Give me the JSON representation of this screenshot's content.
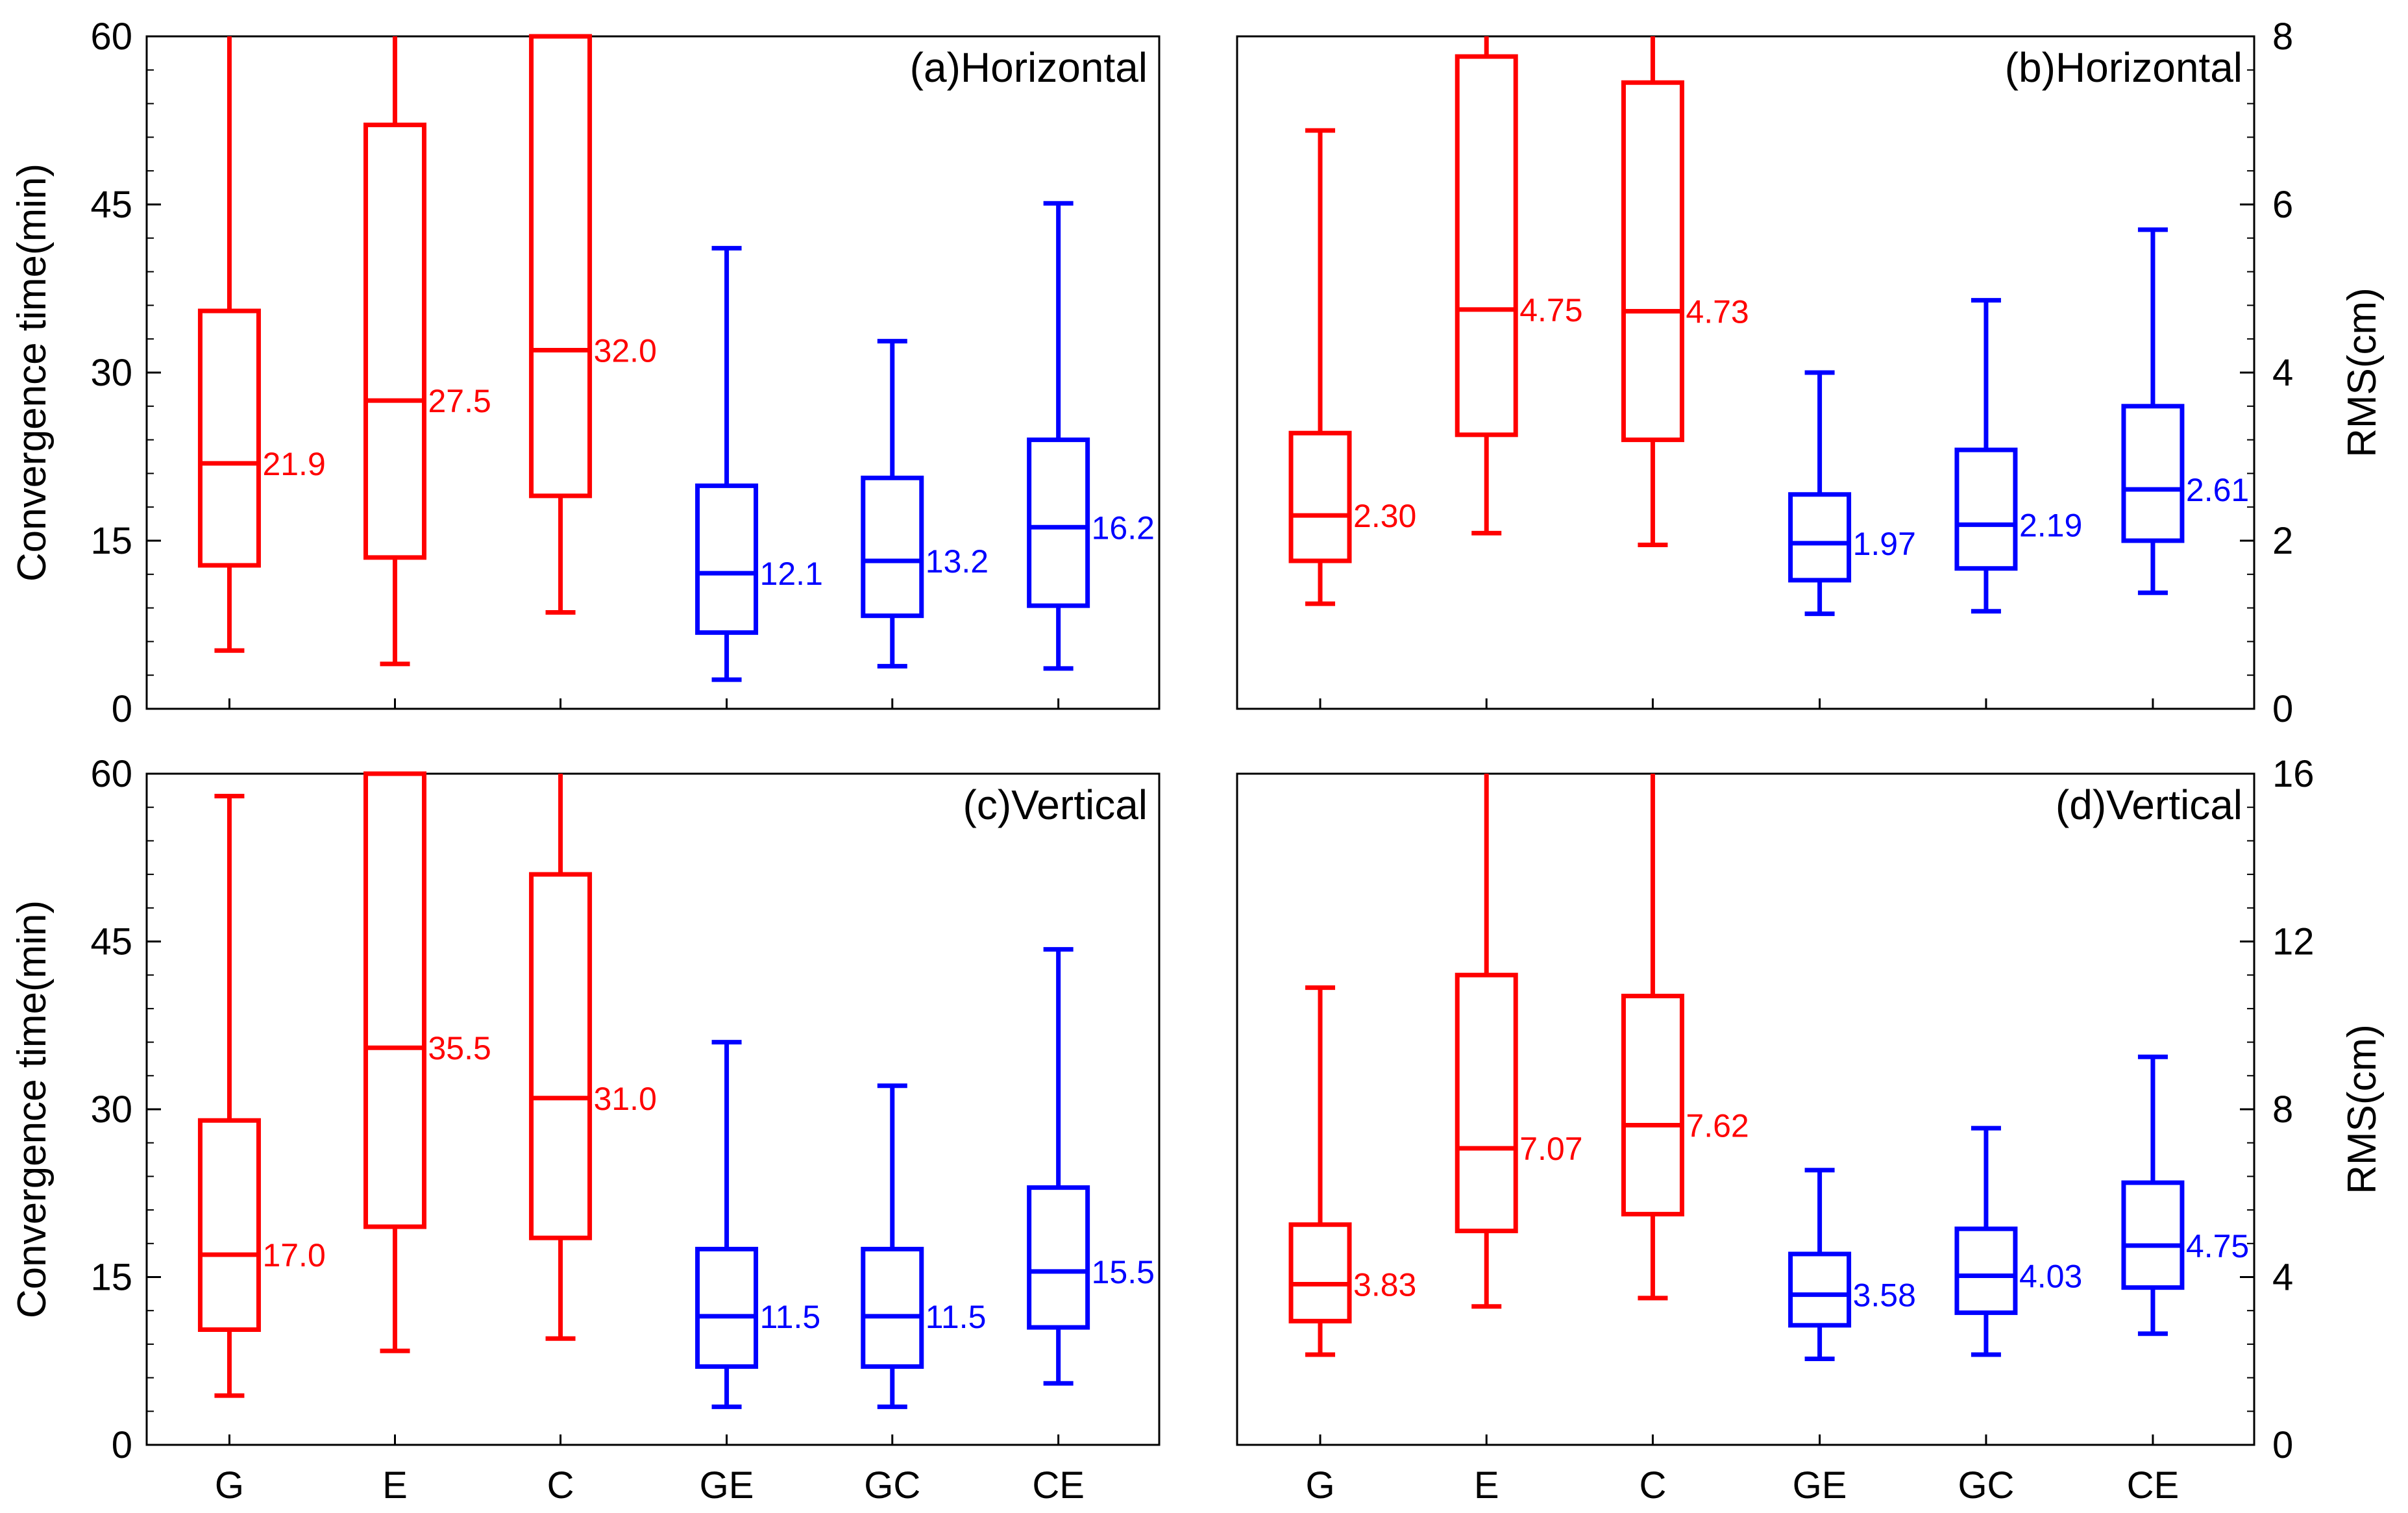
{
  "colors": {
    "single": "#ff0000",
    "dual": "#0000ff",
    "axis": "#000000"
  },
  "chart_data": [
    {
      "type": "box",
      "panel_id": "a",
      "title": "(a)Horizontal",
      "ylabel": "Convergence time(min)",
      "y_axis_side": "left",
      "ylim": [
        0,
        60
      ],
      "yticks": [
        "0",
        "15",
        "30",
        "45",
        "60"
      ],
      "show_xticklabels": false,
      "categories": [
        "G",
        "E",
        "C",
        "GE",
        "GC",
        "CE"
      ],
      "boxes": [
        {
          "category": "G",
          "color": "red",
          "whisker_low": 5.2,
          "q1": 12.8,
          "median": 21.9,
          "q3": 35.5,
          "whisker_high": 60,
          "label": "21.9"
        },
        {
          "category": "E",
          "color": "red",
          "whisker_low": 4.0,
          "q1": 13.5,
          "median": 27.5,
          "q3": 52.1,
          "whisker_high": 60,
          "label": "27.5"
        },
        {
          "category": "C",
          "color": "red",
          "whisker_low": 8.6,
          "q1": 19.0,
          "median": 32.0,
          "q3": 60,
          "whisker_high": 60,
          "label": "32.0"
        },
        {
          "category": "GE",
          "color": "blue",
          "whisker_low": 2.6,
          "q1": 6.8,
          "median": 12.1,
          "q3": 19.9,
          "whisker_high": 41.1,
          "label": "12.1"
        },
        {
          "category": "GC",
          "color": "blue",
          "whisker_low": 3.8,
          "q1": 8.3,
          "median": 13.2,
          "q3": 20.6,
          "whisker_high": 32.8,
          "label": "13.2"
        },
        {
          "category": "CE",
          "color": "blue",
          "whisker_low": 3.6,
          "q1": 9.2,
          "median": 16.2,
          "q3": 24.0,
          "whisker_high": 45.1,
          "label": "16.2"
        }
      ]
    },
    {
      "type": "box",
      "panel_id": "b",
      "title": "(b)Horizontal",
      "ylabel": "RMS(cm)",
      "y_axis_side": "right",
      "ylim": [
        0,
        8
      ],
      "yticks": [
        "0",
        "2",
        "4",
        "6",
        "8"
      ],
      "show_xticklabels": false,
      "categories": [
        "G",
        "E",
        "C",
        "GE",
        "GC",
        "CE"
      ],
      "boxes": [
        {
          "category": "G",
          "color": "red",
          "whisker_low": 1.25,
          "q1": 1.76,
          "median": 2.3,
          "q3": 3.28,
          "whisker_high": 6.88,
          "label": "2.30"
        },
        {
          "category": "E",
          "color": "red",
          "whisker_low": 2.09,
          "q1": 3.26,
          "median": 4.75,
          "q3": 7.76,
          "whisker_high": 8,
          "label": "4.75"
        },
        {
          "category": "C",
          "color": "red",
          "whisker_low": 1.95,
          "q1": 3.2,
          "median": 4.73,
          "q3": 7.45,
          "whisker_high": 8,
          "label": "4.73"
        },
        {
          "category": "GE",
          "color": "blue",
          "whisker_low": 1.13,
          "q1": 1.53,
          "median": 1.97,
          "q3": 2.55,
          "whisker_high": 4.0,
          "label": "1.97"
        },
        {
          "category": "GC",
          "color": "blue",
          "whisker_low": 1.16,
          "q1": 1.67,
          "median": 2.19,
          "q3": 3.08,
          "whisker_high": 4.86,
          "label": "2.19"
        },
        {
          "category": "CE",
          "color": "blue",
          "whisker_low": 1.38,
          "q1": 2.0,
          "median": 2.61,
          "q3": 3.6,
          "whisker_high": 5.7,
          "label": "2.61"
        }
      ]
    },
    {
      "type": "box",
      "panel_id": "c",
      "title": "(c)Vertical",
      "ylabel": "Convergence time(min)",
      "y_axis_side": "left",
      "ylim": [
        0,
        60
      ],
      "yticks": [
        "0",
        "15",
        "30",
        "45",
        "60"
      ],
      "show_xticklabels": true,
      "categories": [
        "G",
        "E",
        "C",
        "GE",
        "GC",
        "CE"
      ],
      "boxes": [
        {
          "category": "G",
          "color": "red",
          "whisker_low": 4.4,
          "q1": 10.3,
          "median": 17.0,
          "q3": 29.0,
          "whisker_high": 58.0,
          "label": "17.0"
        },
        {
          "category": "E",
          "color": "red",
          "whisker_low": 8.4,
          "q1": 19.5,
          "median": 35.5,
          "q3": 60,
          "whisker_high": 60,
          "label": "35.5"
        },
        {
          "category": "C",
          "color": "red",
          "whisker_low": 9.5,
          "q1": 18.5,
          "median": 31.0,
          "q3": 51.0,
          "whisker_high": 60,
          "label": "31.0"
        },
        {
          "category": "GE",
          "color": "blue",
          "whisker_low": 3.4,
          "q1": 7.0,
          "median": 11.5,
          "q3": 17.5,
          "whisker_high": 36.0,
          "label": "11.5"
        },
        {
          "category": "GC",
          "color": "blue",
          "whisker_low": 3.4,
          "q1": 7.0,
          "median": 11.5,
          "q3": 17.5,
          "whisker_high": 32.1,
          "label": "11.5"
        },
        {
          "category": "CE",
          "color": "blue",
          "whisker_low": 5.5,
          "q1": 10.5,
          "median": 15.5,
          "q3": 23.0,
          "whisker_high": 44.3,
          "label": "15.5"
        }
      ]
    },
    {
      "type": "box",
      "panel_id": "d",
      "title": "(d)Vertical",
      "ylabel": "RMS(cm)",
      "y_axis_side": "right",
      "ylim": [
        0,
        16
      ],
      "yticks": [
        "0",
        "4",
        "8",
        "12",
        "16"
      ],
      "show_xticklabels": true,
      "categories": [
        "G",
        "E",
        "C",
        "GE",
        "GC",
        "CE"
      ],
      "boxes": [
        {
          "category": "G",
          "color": "red",
          "whisker_low": 2.15,
          "q1": 2.95,
          "median": 3.83,
          "q3": 5.25,
          "whisker_high": 10.9,
          "label": "3.83"
        },
        {
          "category": "E",
          "color": "red",
          "whisker_low": 3.3,
          "q1": 5.1,
          "median": 7.07,
          "q3": 11.2,
          "whisker_high": 16,
          "label": "7.07"
        },
        {
          "category": "C",
          "color": "red",
          "whisker_low": 3.5,
          "q1": 5.5,
          "median": 7.62,
          "q3": 10.7,
          "whisker_high": 16,
          "label": "7.62"
        },
        {
          "category": "GE",
          "color": "blue",
          "whisker_low": 2.05,
          "q1": 2.85,
          "median": 3.58,
          "q3": 4.55,
          "whisker_high": 6.55,
          "label": "3.58"
        },
        {
          "category": "GC",
          "color": "blue",
          "whisker_low": 2.15,
          "q1": 3.15,
          "median": 4.03,
          "q3": 5.15,
          "whisker_high": 7.55,
          "label": "4.03"
        },
        {
          "category": "CE",
          "color": "blue",
          "whisker_low": 2.65,
          "q1": 3.75,
          "median": 4.75,
          "q3": 6.25,
          "whisker_high": 9.25,
          "label": "4.75"
        }
      ]
    }
  ]
}
